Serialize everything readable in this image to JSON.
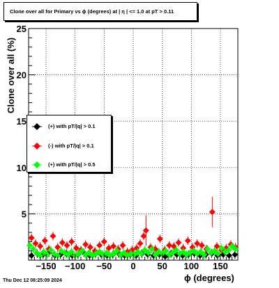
{
  "title": "Clone  over all for Primary vs ϕ (degrees) at |  η  | <= 1.0 at pT > 0.11",
  "timestamp": "Thu Dec 12 08:25:09 2024",
  "chart_data": {
    "type": "scatter",
    "xlabel": "ϕ (degrees)",
    "ylabel": "Clone  over all (%)",
    "xlim": [
      -180,
      180
    ],
    "ylim": [
      0,
      25
    ],
    "xticks": [
      -150,
      -100,
      -50,
      0,
      50,
      100,
      150
    ],
    "yticks": [
      5,
      10,
      15,
      20,
      25
    ],
    "grid": true,
    "legend_position": "left",
    "series": [
      {
        "name": "(+) with pT/|q| > 0.1",
        "color": "#000000",
        "points": [
          [
            -175,
            0.5
          ],
          [
            -165,
            0.7
          ],
          [
            -155,
            0.6
          ],
          [
            -145,
            0.8
          ],
          [
            -135,
            0.5
          ],
          [
            -125,
            0.6
          ],
          [
            -115,
            0.7
          ],
          [
            -105,
            0.5
          ],
          [
            -95,
            0.6
          ],
          [
            -85,
            0.8
          ],
          [
            -75,
            0.5
          ],
          [
            -65,
            0.7
          ],
          [
            -55,
            0.6
          ],
          [
            -45,
            0.5
          ],
          [
            -35,
            0.6
          ],
          [
            -25,
            0.7
          ],
          [
            -15,
            0.5
          ],
          [
            -5,
            0.6
          ],
          [
            5,
            0.5
          ],
          [
            15,
            0.7
          ],
          [
            25,
            0.6
          ],
          [
            35,
            0.5
          ],
          [
            45,
            0.6
          ],
          [
            55,
            0.4
          ],
          [
            65,
            0.7
          ],
          [
            75,
            0.6
          ],
          [
            85,
            0.5
          ],
          [
            95,
            0.6
          ],
          [
            105,
            0.7
          ],
          [
            115,
            0.5
          ],
          [
            125,
            0.6
          ],
          [
            135,
            0.7
          ],
          [
            145,
            0.5
          ],
          [
            155,
            0.6
          ],
          [
            165,
            0.5
          ],
          [
            175,
            0.6
          ]
        ]
      },
      {
        "name": "(-) with pT/|q| > 0.1",
        "color": "#ff0000",
        "points": [
          [
            -175,
            2.4
          ],
          [
            -168,
            1.8
          ],
          [
            -160,
            1.5
          ],
          [
            -152,
            2.1
          ],
          [
            -145,
            1.2
          ],
          [
            -138,
            2.6
          ],
          [
            -130,
            1.4
          ],
          [
            -122,
            1.9
          ],
          [
            -114,
            1.6
          ],
          [
            -106,
            2.0
          ],
          [
            -98,
            1.3
          ],
          [
            -90,
            1.1
          ],
          [
            -82,
            1.7
          ],
          [
            -74,
            1.4
          ],
          [
            -66,
            1.0
          ],
          [
            -58,
            1.6
          ],
          [
            -50,
            2.0
          ],
          [
            -42,
            1.3
          ],
          [
            -34,
            1.5
          ],
          [
            -26,
            1.2
          ],
          [
            -18,
            1.6
          ],
          [
            -10,
            0.9
          ],
          [
            -2,
            1.1
          ],
          [
            6,
            1.3
          ],
          [
            12,
            1.8
          ],
          [
            18,
            2.6
          ],
          [
            22,
            3.2
          ],
          [
            30,
            1.4
          ],
          [
            38,
            1.2
          ],
          [
            46,
            2.3
          ],
          [
            54,
            1.1
          ],
          [
            62,
            1.6
          ],
          [
            70,
            1.5
          ],
          [
            78,
            1.9
          ],
          [
            86,
            1.3
          ],
          [
            94,
            2.1
          ],
          [
            102,
            1.4
          ],
          [
            110,
            1.8
          ],
          [
            118,
            1.6
          ],
          [
            126,
            1.2
          ],
          [
            136,
            5.2
          ],
          [
            144,
            1.5
          ],
          [
            152,
            1.1
          ],
          [
            160,
            1.3
          ],
          [
            168,
            1.7
          ],
          [
            176,
            1.4
          ]
        ]
      },
      {
        "name": "(+) with pT/|q| > 0.5",
        "color": "#00ff00",
        "points": [
          [
            -178,
            1.6
          ],
          [
            -172,
            1.2
          ],
          [
            -166,
            0.8
          ],
          [
            -160,
            0.5
          ],
          [
            -154,
            0.9
          ],
          [
            -148,
            0.6
          ],
          [
            -142,
            1.1
          ],
          [
            -136,
            0.7
          ],
          [
            -130,
            0.5
          ],
          [
            -124,
            1.0
          ],
          [
            -118,
            0.8
          ],
          [
            -112,
            0.6
          ],
          [
            -106,
            0.9
          ],
          [
            -100,
            0.5
          ],
          [
            -94,
            0.7
          ],
          [
            -88,
            1.0
          ],
          [
            -82,
            0.6
          ],
          [
            -76,
            0.8
          ],
          [
            -70,
            0.5
          ],
          [
            -64,
            0.7
          ],
          [
            -58,
            0.9
          ],
          [
            -52,
            0.6
          ],
          [
            -46,
            0.8
          ],
          [
            -40,
            0.5
          ],
          [
            -34,
            0.7
          ],
          [
            -28,
            1.0
          ],
          [
            -22,
            0.6
          ],
          [
            -16,
            0.8
          ],
          [
            -10,
            0.5
          ],
          [
            -4,
            0.7
          ],
          [
            2,
            0.6
          ],
          [
            8,
            0.9
          ],
          [
            14,
            0.7
          ],
          [
            20,
            1.1
          ],
          [
            26,
            0.8
          ],
          [
            32,
            1.2
          ],
          [
            38,
            0.6
          ],
          [
            44,
            0.9
          ],
          [
            50,
            0.7
          ],
          [
            56,
            1.0
          ],
          [
            62,
            0.6
          ],
          [
            68,
            0.8
          ],
          [
            74,
            1.1
          ],
          [
            80,
            0.7
          ],
          [
            86,
            0.9
          ],
          [
            92,
            0.6
          ],
          [
            98,
            0.8
          ],
          [
            104,
            1.0
          ],
          [
            110,
            0.7
          ],
          [
            116,
            0.9
          ],
          [
            122,
            0.6
          ],
          [
            128,
            1.2
          ],
          [
            134,
            0.8
          ],
          [
            140,
            1.0
          ],
          [
            146,
            0.7
          ],
          [
            152,
            1.3
          ],
          [
            158,
            0.9
          ],
          [
            164,
            1.1
          ],
          [
            170,
            1.5
          ],
          [
            176,
            1.2
          ]
        ]
      }
    ]
  }
}
